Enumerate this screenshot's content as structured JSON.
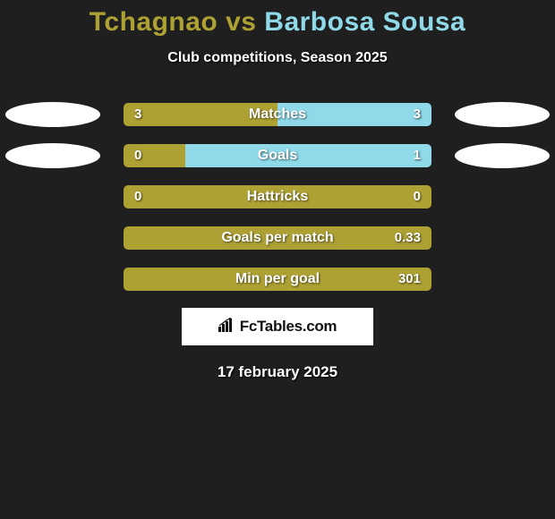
{
  "title": {
    "player1": "Tchagnao",
    "vs": " vs ",
    "player2": "Barbosa Sousa",
    "color1": "#aea134",
    "color2": "#8fd9e8",
    "fontsize": 30
  },
  "subtitle": "Club competitions, Season 2025",
  "colors": {
    "background": "#1f1f1f",
    "player1": "#aea134",
    "player2": "#8fd9e8",
    "disc": "#ffffff",
    "brand_bg": "#ffffff",
    "brand_text": "#111111"
  },
  "disc_rows": [
    0,
    1
  ],
  "bars": [
    {
      "label": "Matches",
      "left_val": "3",
      "right_val": "3",
      "left_pct": 50,
      "right_pct": 50
    },
    {
      "label": "Goals",
      "left_val": "0",
      "right_val": "1",
      "left_pct": 20,
      "right_pct": 80
    },
    {
      "label": "Hattricks",
      "left_val": "0",
      "right_val": "0",
      "left_pct": 100,
      "right_pct": 0
    },
    {
      "label": "Goals per match",
      "left_val": "",
      "right_val": "0.33",
      "left_pct": 100,
      "right_pct": 0
    },
    {
      "label": "Min per goal",
      "left_val": "",
      "right_val": "301",
      "left_pct": 100,
      "right_pct": 0
    }
  ],
  "brand": "FcTables.com",
  "date": "17 february 2025"
}
